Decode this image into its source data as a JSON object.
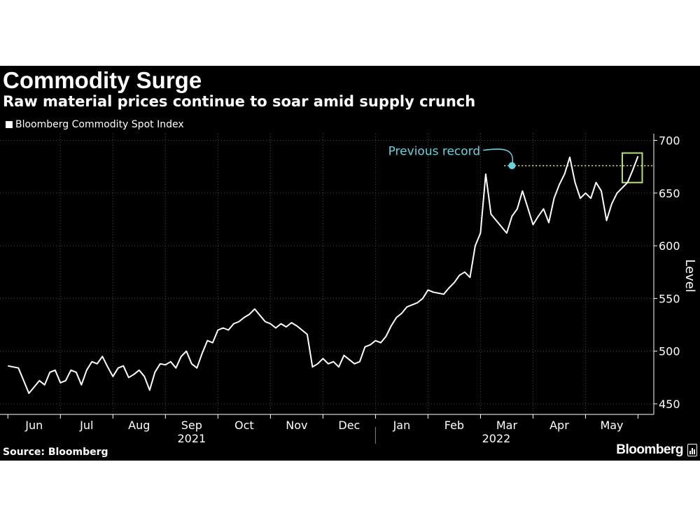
{
  "chart_data": {
    "type": "line",
    "title": "Commodity Surge",
    "subtitle": "Raw material prices continue to soar amid supply crunch",
    "ylabel": "Level",
    "ylim": [
      440,
      703
    ],
    "yticks": [
      450,
      500,
      550,
      600,
      650,
      700
    ],
    "xlabel": "",
    "month_labels": [
      "Jun",
      "Jul",
      "Aug",
      "Sep",
      "Oct",
      "Nov",
      "Dec",
      "Jan",
      "Feb",
      "Mar",
      "Apr",
      "May"
    ],
    "year_labels": [
      {
        "text": "2021",
        "center_month_index": 3.5
      },
      {
        "text": "2022",
        "center_month_index": 9.3
      }
    ],
    "grid": true,
    "legend_placement": "top-left",
    "series": [
      {
        "name": "Bloomberg Commodity Spot Index",
        "color": "#ffffff",
        "x_unit": "months since start of Jun 2021",
        "x": [
          0,
          0.1,
          0.2,
          0.3,
          0.4,
          0.5,
          0.6,
          0.7,
          0.8,
          0.9,
          1,
          1.1,
          1.2,
          1.3,
          1.4,
          1.5,
          1.6,
          1.7,
          1.8,
          1.9,
          2,
          2.1,
          2.2,
          2.3,
          2.4,
          2.5,
          2.6,
          2.7,
          2.8,
          2.9,
          3,
          3.1,
          3.2,
          3.3,
          3.4,
          3.5,
          3.6,
          3.7,
          3.8,
          3.9,
          4,
          4.1,
          4.2,
          4.3,
          4.4,
          4.5,
          4.6,
          4.7,
          4.8,
          4.9,
          5,
          5.1,
          5.2,
          5.3,
          5.4,
          5.5,
          5.6,
          5.7,
          5.8,
          5.9,
          6,
          6.1,
          6.2,
          6.3,
          6.4,
          6.5,
          6.6,
          6.7,
          6.8,
          6.9,
          7,
          7.1,
          7.2,
          7.3,
          7.4,
          7.5,
          7.6,
          7.7,
          7.8,
          7.9,
          8,
          8.1,
          8.2,
          8.3,
          8.4,
          8.5,
          8.6,
          8.7,
          8.8,
          8.9,
          9,
          9.1,
          9.2,
          9.3,
          9.4,
          9.5,
          9.6,
          9.7,
          9.8,
          9.9,
          10,
          10.1,
          10.2,
          10.3,
          10.4,
          10.5,
          10.6,
          10.7,
          10.8,
          10.9,
          11,
          11.1,
          11.2,
          11.3,
          11.4,
          11.5,
          11.6,
          11.7,
          11.8,
          11.9,
          12
        ],
        "values": [
          486,
          485,
          484,
          472,
          460,
          466,
          472,
          468,
          480,
          482,
          470,
          472,
          482,
          480,
          468,
          482,
          490,
          488,
          495,
          485,
          476,
          484,
          486,
          475,
          478,
          482,
          476,
          463,
          480,
          488,
          487,
          490,
          484,
          495,
          500,
          488,
          484,
          498,
          510,
          508,
          520,
          522,
          520,
          526,
          528,
          532,
          535,
          540,
          534,
          528,
          526,
          522,
          526,
          523,
          527,
          524,
          520,
          516,
          485,
          488,
          493,
          488,
          490,
          485,
          496,
          492,
          488,
          490,
          504,
          506,
          510,
          508,
          514,
          524,
          532,
          536,
          542,
          544,
          546,
          550,
          558,
          556,
          555,
          554,
          560,
          565,
          572,
          575,
          570,
          600,
          612,
          668,
          630,
          624,
          618,
          612,
          628,
          635,
          652,
          636,
          620,
          628,
          635,
          622,
          645,
          658,
          668,
          684,
          660,
          645,
          650,
          645,
          660,
          652,
          624,
          640,
          650,
          655,
          660,
          672,
          685
        ]
      }
    ],
    "annotations": [
      {
        "text": "Previous record",
        "color": "#5fd7e0",
        "value": 676,
        "x": 9.6
      },
      {
        "text": "",
        "reference_line_value": 676,
        "line_color": "#d9e26a",
        "style": "dotted"
      },
      {
        "text": "",
        "highlight_box_color": "#b5e36a",
        "x_range": [
          11.7,
          12.0
        ],
        "y_range": [
          660,
          688
        ]
      }
    ]
  },
  "legend": {
    "label": "Bloomberg Commodity Spot Index",
    "swatch_color": "#ffffff"
  },
  "footer": {
    "source": "Source: Bloomberg",
    "brand": "Bloomberg"
  },
  "colors": {
    "background": "#000000",
    "grid": "#4a4a4a",
    "axis": "#ffffff"
  }
}
